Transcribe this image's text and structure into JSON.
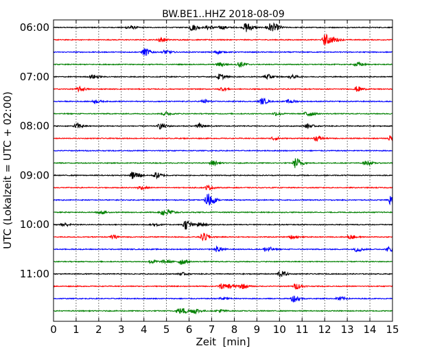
{
  "chart_data": {
    "type": "line",
    "title": "BW.BE1..HHZ 2018-08-09",
    "xlabel": "Zeit  [min]",
    "ylabel": "UTC (Lokalzeit = UTC + 02:00)",
    "xlim": [
      0,
      15
    ],
    "x_ticks": [
      0,
      1,
      2,
      3,
      4,
      5,
      6,
      7,
      8,
      9,
      10,
      11,
      12,
      13,
      14,
      15
    ],
    "x_tick_labels": [
      "0",
      "1",
      "2",
      "3",
      "4",
      "5",
      "6",
      "7",
      "8",
      "9",
      "10",
      "11",
      "12",
      "13",
      "14",
      "15"
    ],
    "y_tick_labels": [
      {
        "row": 0,
        "label": "06:00"
      },
      {
        "row": 4,
        "label": "07:00"
      },
      {
        "row": 8,
        "label": "08:00"
      },
      {
        "row": 12,
        "label": "09:00"
      },
      {
        "row": 16,
        "label": "10:00"
      },
      {
        "row": 20,
        "label": "11:00"
      }
    ],
    "grid": "vertical dotted",
    "colors": [
      "#000000",
      "#ff0000",
      "#0000ff",
      "#008000"
    ],
    "trace_noise_amplitude": 0.08,
    "traces": [
      {
        "row": 0,
        "events": [
          {
            "x": 3.3,
            "a": 0.35
          },
          {
            "x": 6.1,
            "a": 0.55
          },
          {
            "x": 6.8,
            "a": 0.35
          },
          {
            "x": 7.4,
            "a": 0.3
          },
          {
            "x": 8.5,
            "a": 0.9
          },
          {
            "x": 9.5,
            "a": 0.8
          },
          {
            "x": 9.8,
            "a": 0.35
          }
        ]
      },
      {
        "row": 1,
        "events": [
          {
            "x": 4.7,
            "a": 0.4
          },
          {
            "x": 12.0,
            "a": 1.0
          },
          {
            "x": 12.4,
            "a": 0.3
          }
        ]
      },
      {
        "row": 2,
        "events": [
          {
            "x": 4.0,
            "a": 0.7
          },
          {
            "x": 4.9,
            "a": 0.3
          },
          {
            "x": 7.2,
            "a": 0.3
          }
        ]
      },
      {
        "row": 3,
        "events": [
          {
            "x": 7.3,
            "a": 0.35
          },
          {
            "x": 8.2,
            "a": 0.5
          },
          {
            "x": 13.4,
            "a": 0.4
          }
        ]
      },
      {
        "row": 4,
        "events": [
          {
            "x": 1.7,
            "a": 0.35
          },
          {
            "x": 7.3,
            "a": 0.5
          },
          {
            "x": 9.4,
            "a": 0.45
          },
          {
            "x": 10.5,
            "a": 0.3
          }
        ]
      },
      {
        "row": 5,
        "events": [
          {
            "x": 1.1,
            "a": 0.4
          },
          {
            "x": 7.4,
            "a": 0.3
          },
          {
            "x": 13.4,
            "a": 0.45
          }
        ]
      },
      {
        "row": 6,
        "events": [
          {
            "x": 1.8,
            "a": 0.25
          },
          {
            "x": 6.6,
            "a": 0.3
          },
          {
            "x": 9.2,
            "a": 0.5
          },
          {
            "x": 10.4,
            "a": 0.35
          }
        ]
      },
      {
        "row": 7,
        "events": [
          {
            "x": 4.9,
            "a": 0.3
          },
          {
            "x": 9.8,
            "a": 0.3
          },
          {
            "x": 11.2,
            "a": 0.6
          }
        ]
      },
      {
        "row": 8,
        "events": [
          {
            "x": 1.0,
            "a": 0.45
          },
          {
            "x": 4.7,
            "a": 0.5
          },
          {
            "x": 6.4,
            "a": 0.45
          },
          {
            "x": 11.2,
            "a": 0.35
          }
        ]
      },
      {
        "row": 9,
        "events": [
          {
            "x": 9.7,
            "a": 0.3
          },
          {
            "x": 11.6,
            "a": 0.45
          },
          {
            "x": 14.9,
            "a": 0.5
          }
        ]
      },
      {
        "row": 10,
        "events": []
      },
      {
        "row": 11,
        "events": [
          {
            "x": 7.0,
            "a": 0.4
          },
          {
            "x": 10.7,
            "a": 0.9
          },
          {
            "x": 13.8,
            "a": 0.35
          }
        ]
      },
      {
        "row": 12,
        "events": [
          {
            "x": 3.5,
            "a": 0.75
          },
          {
            "x": 4.5,
            "a": 0.5
          }
        ]
      },
      {
        "row": 13,
        "events": [
          {
            "x": 3.8,
            "a": 0.3
          },
          {
            "x": 6.8,
            "a": 0.4
          }
        ]
      },
      {
        "row": 14,
        "events": [
          {
            "x": 6.8,
            "a": 1.3
          },
          {
            "x": 14.9,
            "a": 0.8
          }
        ]
      },
      {
        "row": 15,
        "events": [
          {
            "x": 2.0,
            "a": 0.3
          },
          {
            "x": 4.8,
            "a": 0.55
          },
          {
            "x": 5.1,
            "a": 0.3
          }
        ]
      },
      {
        "row": 16,
        "events": [
          {
            "x": 0.4,
            "a": 0.3
          },
          {
            "x": 4.4,
            "a": 0.3
          },
          {
            "x": 5.8,
            "a": 0.85
          },
          {
            "x": 6.4,
            "a": 0.35
          }
        ]
      },
      {
        "row": 17,
        "events": [
          {
            "x": 2.6,
            "a": 0.3
          },
          {
            "x": 6.6,
            "a": 0.7
          },
          {
            "x": 10.5,
            "a": 0.3
          },
          {
            "x": 13.1,
            "a": 0.35
          }
        ]
      },
      {
        "row": 18,
        "events": [
          {
            "x": 7.2,
            "a": 0.45
          },
          {
            "x": 9.4,
            "a": 0.5
          },
          {
            "x": 13.4,
            "a": 0.4
          },
          {
            "x": 14.8,
            "a": 0.4
          }
        ]
      },
      {
        "row": 19,
        "events": [
          {
            "x": 4.3,
            "a": 0.3
          },
          {
            "x": 4.9,
            "a": 0.3
          },
          {
            "x": 5.6,
            "a": 0.55
          }
        ]
      },
      {
        "row": 20,
        "events": [
          {
            "x": 5.6,
            "a": 0.25
          },
          {
            "x": 10.0,
            "a": 0.55
          }
        ]
      },
      {
        "row": 21,
        "events": [
          {
            "x": 7.4,
            "a": 0.45
          },
          {
            "x": 7.8,
            "a": 0.35
          },
          {
            "x": 8.3,
            "a": 0.45
          },
          {
            "x": 10.7,
            "a": 0.5
          }
        ]
      },
      {
        "row": 22,
        "events": [
          {
            "x": 7.4,
            "a": 0.3
          },
          {
            "x": 10.6,
            "a": 0.6
          },
          {
            "x": 12.6,
            "a": 0.35
          }
        ]
      },
      {
        "row": 23,
        "events": [
          {
            "x": 5.5,
            "a": 0.5
          },
          {
            "x": 5.8,
            "a": 0.3
          },
          {
            "x": 6.2,
            "a": 0.45
          },
          {
            "x": 7.3,
            "a": 0.3
          }
        ]
      }
    ]
  }
}
